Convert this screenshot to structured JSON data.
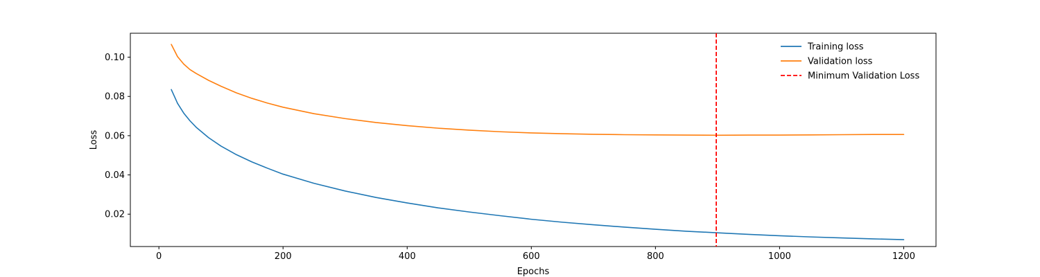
{
  "chart_data": {
    "type": "line",
    "xlabel": "Epochs",
    "ylabel": "Loss",
    "xlim": [
      -46,
      1252
    ],
    "ylim": [
      0.0035,
      0.1122
    ],
    "x_ticks": [
      0,
      200,
      400,
      600,
      800,
      1000,
      1200
    ],
    "y_ticks": [
      0.02,
      0.04,
      0.06,
      0.08,
      0.1
    ],
    "y_tick_labels": [
      "0.02",
      "0.04",
      "0.06",
      "0.08",
      "0.10"
    ],
    "grid": false,
    "legend_position": "top-right",
    "series": [
      {
        "name": "Training loss",
        "color": "#1f77b4",
        "x": [
          20,
          30,
          40,
          50,
          60,
          80,
          100,
          125,
          150,
          175,
          200,
          250,
          300,
          350,
          400,
          450,
          500,
          550,
          600,
          650,
          700,
          750,
          800,
          850,
          900,
          950,
          1000,
          1050,
          1100,
          1150,
          1200
        ],
        "y": [
          0.0835,
          0.0765,
          0.0715,
          0.0676,
          0.0643,
          0.059,
          0.0547,
          0.0503,
          0.0466,
          0.0434,
          0.0404,
          0.0357,
          0.0318,
          0.0285,
          0.0257,
          0.0232,
          0.0211,
          0.0192,
          0.0174,
          0.0159,
          0.0146,
          0.0134,
          0.0123,
          0.0113,
          0.0105,
          0.0097,
          0.009,
          0.0084,
          0.0079,
          0.0074,
          0.007
        ]
      },
      {
        "name": "Validation loss",
        "color": "#ff7f0e",
        "x": [
          20,
          30,
          40,
          50,
          60,
          80,
          100,
          125,
          150,
          175,
          200,
          250,
          300,
          350,
          400,
          450,
          500,
          550,
          600,
          650,
          700,
          750,
          800,
          850,
          900,
          950,
          1000,
          1050,
          1100,
          1150,
          1200
        ],
        "y": [
          0.1065,
          0.1003,
          0.0965,
          0.0937,
          0.0917,
          0.0882,
          0.0852,
          0.0818,
          0.079,
          0.0766,
          0.0745,
          0.0712,
          0.0687,
          0.0667,
          0.0651,
          0.0638,
          0.0628,
          0.062,
          0.0614,
          0.061,
          0.0607,
          0.0605,
          0.0604,
          0.0603,
          0.0602,
          0.0603,
          0.0603,
          0.0604,
          0.0605,
          0.0606,
          0.0606
        ]
      }
    ],
    "vlines": [
      {
        "name": "Minimum Validation Loss",
        "x": 898,
        "color": "#ff0000",
        "style": "dashed"
      }
    ]
  }
}
